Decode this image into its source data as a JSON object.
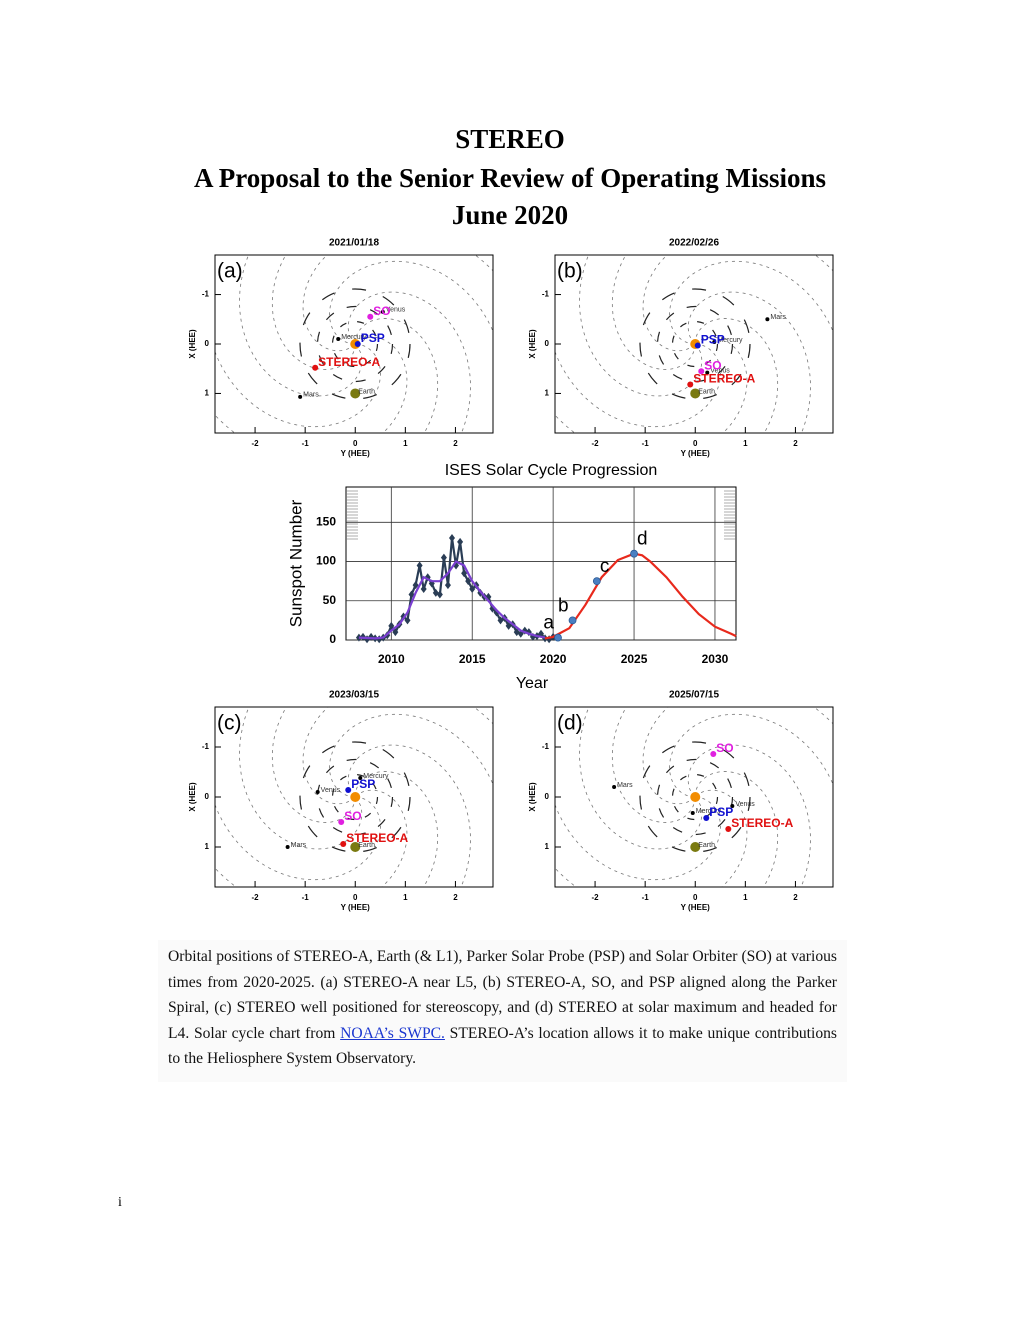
{
  "title": [
    "STEREO",
    "A Proposal to the Senior Review of Operating Missions",
    "June 2020"
  ],
  "chart_data": [
    {
      "type": "scatter",
      "title": "2021/01/18",
      "panel": "(a)",
      "xlabel": "Y (HEE)",
      "ylabel": "X (HEE)",
      "xlim": [
        -2.8,
        2.75
      ],
      "ylim": [
        -1.8,
        1.8
      ],
      "y_inverted": true,
      "xticks": [
        -2,
        -1,
        0,
        1,
        2
      ],
      "yticks": [
        -1,
        0,
        1
      ],
      "series": [
        {
          "color": "#f28c00",
          "size": 5,
          "x": [
            0
          ],
          "values": [
            0
          ]
        },
        {
          "name": "Mercury",
          "color": "#000000",
          "size": 2,
          "x": [
            -0.34
          ],
          "values": [
            -0.1
          ]
        },
        {
          "name": "Venus",
          "color": "#000000",
          "size": 2,
          "x": [
            0.55
          ],
          "values": [
            -0.65
          ]
        },
        {
          "name": "Earth",
          "color": "#7a7a10",
          "size": 5,
          "x": [
            0
          ],
          "values": [
            1
          ]
        },
        {
          "name": "Mars",
          "color": "#000000",
          "size": 2,
          "x": [
            -1.1
          ],
          "values": [
            1.07
          ]
        },
        {
          "name": "PSP",
          "color": "#1010d0",
          "size": 3,
          "x": [
            0.05
          ],
          "values": [
            0
          ]
        },
        {
          "name": "SO",
          "color": "#e020e0",
          "size": 3,
          "x": [
            0.3
          ],
          "values": [
            -0.55
          ]
        },
        {
          "name": "STEREO-A",
          "color": "#e01010",
          "size": 3,
          "x": [
            -0.8
          ],
          "values": [
            0.48
          ]
        }
      ]
    },
    {
      "type": "scatter",
      "title": "2022/02/26",
      "panel": "(b)",
      "xlabel": "Y (HEE)",
      "ylabel": "X (HEE)",
      "xlim": [
        -2.8,
        2.75
      ],
      "ylim": [
        -1.8,
        1.8
      ],
      "y_inverted": true,
      "xticks": [
        -2,
        -1,
        0,
        1,
        2
      ],
      "yticks": [
        -1,
        0,
        1
      ],
      "series": [
        {
          "color": "#f28c00",
          "size": 5,
          "x": [
            0
          ],
          "values": [
            0
          ]
        },
        {
          "name": "Mercury",
          "color": "#000000",
          "size": 2,
          "x": [
            0.38
          ],
          "values": [
            -0.04
          ]
        },
        {
          "name": "Venus",
          "color": "#000000",
          "size": 2,
          "x": [
            0.24
          ],
          "values": [
            0.58
          ]
        },
        {
          "name": "Earth",
          "color": "#7a7a10",
          "size": 5,
          "x": [
            0
          ],
          "values": [
            1
          ]
        },
        {
          "name": "Mars",
          "color": "#000000",
          "size": 2,
          "x": [
            1.44
          ],
          "values": [
            -0.5
          ]
        },
        {
          "name": "PSP",
          "color": "#1010d0",
          "size": 3,
          "x": [
            0.05
          ],
          "values": [
            0.03
          ]
        },
        {
          "name": "SO",
          "color": "#e020e0",
          "size": 3,
          "x": [
            0.12
          ],
          "values": [
            0.55
          ]
        },
        {
          "name": "STEREO-A",
          "color": "#e01010",
          "size": 3,
          "x": [
            -0.1
          ],
          "values": [
            0.82
          ]
        }
      ]
    },
    {
      "type": "line",
      "title": "ISES Solar Cycle Progression",
      "xlabel": "Year",
      "ylabel": "Sunspot Number",
      "xlim": [
        2007.2,
        2031.3
      ],
      "ylim": [
        0,
        195
      ],
      "xticks": [
        2010,
        2015,
        2020,
        2025,
        2030
      ],
      "yticks": [
        0,
        50,
        100,
        150
      ],
      "grid": true,
      "series": [
        {
          "color": "#2a3d55",
          "marker": "diamond",
          "x": [
            2008.0,
            2008.25,
            2008.5,
            2008.75,
            2009.0,
            2009.25,
            2009.5,
            2009.75,
            2010.0,
            2010.25,
            2010.5,
            2010.75,
            2011.0,
            2011.25,
            2011.5,
            2011.75,
            2012.0,
            2012.25,
            2012.5,
            2012.75,
            2013.0,
            2013.25,
            2013.5,
            2013.75,
            2014.0,
            2014.25,
            2014.5,
            2014.75,
            2015.0,
            2015.25,
            2015.5,
            2015.75,
            2016.0,
            2016.25,
            2016.5,
            2016.75,
            2017.0,
            2017.25,
            2017.5,
            2017.75,
            2018.0,
            2018.25,
            2018.5,
            2018.75,
            2019.0,
            2019.25,
            2019.5,
            2019.75,
            2020.0
          ],
          "values": [
            3,
            4,
            1,
            4,
            2,
            1,
            3,
            6,
            18,
            10,
            20,
            30,
            25,
            58,
            70,
            95,
            65,
            80,
            72,
            60,
            58,
            105,
            70,
            130,
            95,
            125,
            85,
            75,
            65,
            70,
            60,
            55,
            55,
            40,
            35,
            25,
            28,
            18,
            20,
            10,
            8,
            12,
            10,
            4,
            5,
            8,
            2,
            1,
            4
          ]
        },
        {
          "color": "#7a3fd0",
          "x": [
            2008,
            2009,
            2009.5,
            2010,
            2010.5,
            2011,
            2011.5,
            2012,
            2012.5,
            2013,
            2013.5,
            2014,
            2014.5,
            2015,
            2015.5,
            2016,
            2016.5,
            2017,
            2017.5,
            2018,
            2018.5,
            2019,
            2019.5
          ],
          "values": [
            3,
            2,
            3,
            12,
            20,
            35,
            60,
            80,
            75,
            75,
            85,
            100,
            95,
            75,
            62,
            50,
            38,
            28,
            20,
            12,
            8,
            5,
            3
          ]
        },
        {
          "color": "#e8291c",
          "x": [
            2019.5,
            2020,
            2021,
            2022,
            2023,
            2024,
            2025,
            2025.5,
            2026,
            2027,
            2028,
            2029,
            2030,
            2031,
            2031.3
          ],
          "values": [
            2,
            4,
            15,
            45,
            80,
            102,
            110,
            108,
            100,
            80,
            55,
            33,
            17,
            8,
            5
          ]
        },
        {
          "color": "#4a7fc1",
          "marker": "circle",
          "point_labels": [
            "a",
            "b",
            "c",
            "d"
          ],
          "x": [
            2020.3,
            2021.2,
            2022.7,
            2025.0
          ],
          "values": [
            3,
            25,
            75,
            110
          ]
        }
      ]
    },
    {
      "type": "scatter",
      "title": "2023/03/15",
      "panel": "(c)",
      "xlabel": "Y (HEE)",
      "ylabel": "X (HEE)",
      "xlim": [
        -2.8,
        2.75
      ],
      "ylim": [
        -1.8,
        1.8
      ],
      "y_inverted": true,
      "xticks": [
        -2,
        -1,
        0,
        1,
        2
      ],
      "yticks": [
        -1,
        0,
        1
      ],
      "series": [
        {
          "color": "#f28c00",
          "size": 5,
          "x": [
            0
          ],
          "values": [
            0
          ]
        },
        {
          "name": "Mercury",
          "color": "#000000",
          "size": 2,
          "x": [
            0.1
          ],
          "values": [
            -0.38
          ]
        },
        {
          "name": "Venus",
          "color": "#000000",
          "size": 2,
          "x": [
            -0.75
          ],
          "values": [
            -0.1
          ]
        },
        {
          "name": "Earth",
          "color": "#7a7a10",
          "size": 5,
          "x": [
            0
          ],
          "values": [
            1
          ]
        },
        {
          "name": "Mars",
          "color": "#000000",
          "size": 2,
          "x": [
            -1.35
          ],
          "values": [
            1.0
          ]
        },
        {
          "name": "PSP",
          "color": "#1010d0",
          "size": 3,
          "x": [
            -0.14
          ],
          "values": [
            -0.14
          ]
        },
        {
          "name": "SO",
          "color": "#e020e0",
          "size": 3,
          "x": [
            -0.28
          ],
          "values": [
            0.5
          ]
        },
        {
          "name": "STEREO-A",
          "color": "#e01010",
          "size": 3,
          "x": [
            -0.24
          ],
          "values": [
            0.94
          ]
        }
      ]
    },
    {
      "type": "scatter",
      "title": "2025/07/15",
      "panel": "(d)",
      "xlabel": "Y (HEE)",
      "ylabel": "X (HEE)",
      "xlim": [
        -2.8,
        2.75
      ],
      "ylim": [
        -1.8,
        1.8
      ],
      "y_inverted": true,
      "xticks": [
        -2,
        -1,
        0,
        1,
        2
      ],
      "yticks": [
        -1,
        0,
        1
      ],
      "series": [
        {
          "color": "#f28c00",
          "size": 5,
          "x": [
            0
          ],
          "values": [
            0
          ]
        },
        {
          "name": "Mercury",
          "color": "#000000",
          "size": 2,
          "x": [
            -0.05
          ],
          "values": [
            0.32
          ]
        },
        {
          "name": "Venus",
          "color": "#000000",
          "size": 2,
          "x": [
            0.74
          ],
          "values": [
            0.18
          ]
        },
        {
          "name": "Earth",
          "color": "#7a7a10",
          "size": 5,
          "x": [
            0
          ],
          "values": [
            1
          ]
        },
        {
          "name": "Mars",
          "color": "#000000",
          "size": 2,
          "x": [
            -1.62
          ],
          "values": [
            -0.2
          ]
        },
        {
          "name": "PSP",
          "color": "#1010d0",
          "size": 3,
          "x": [
            0.22
          ],
          "values": [
            0.42
          ]
        },
        {
          "name": "SO",
          "color": "#e020e0",
          "size": 3,
          "x": [
            0.36
          ],
          "values": [
            -0.86
          ]
        },
        {
          "name": "STEREO-A",
          "color": "#e01010",
          "size": 3,
          "x": [
            0.66
          ],
          "values": [
            0.64
          ]
        }
      ]
    }
  ],
  "caption": {
    "before": "Orbital positions of STEREO-A, Earth (& L1), Parker Solar Probe (PSP) and Solar Orbiter (SO) at various times from 2020-2025. (a) STEREO-A near L5, (b) STEREO-A, SO, and PSP aligned along the Parker Spiral, (c) STEREO well positioned for stereoscopy, and (d) STEREO at solar maximum and headed for L4. Solar cycle chart from ",
    "link": "NOAA’s SWPC.",
    "after": " STEREO-A’s location allows it to make unique contributions to the Heliosphere System Observatory."
  },
  "page_number": "i"
}
